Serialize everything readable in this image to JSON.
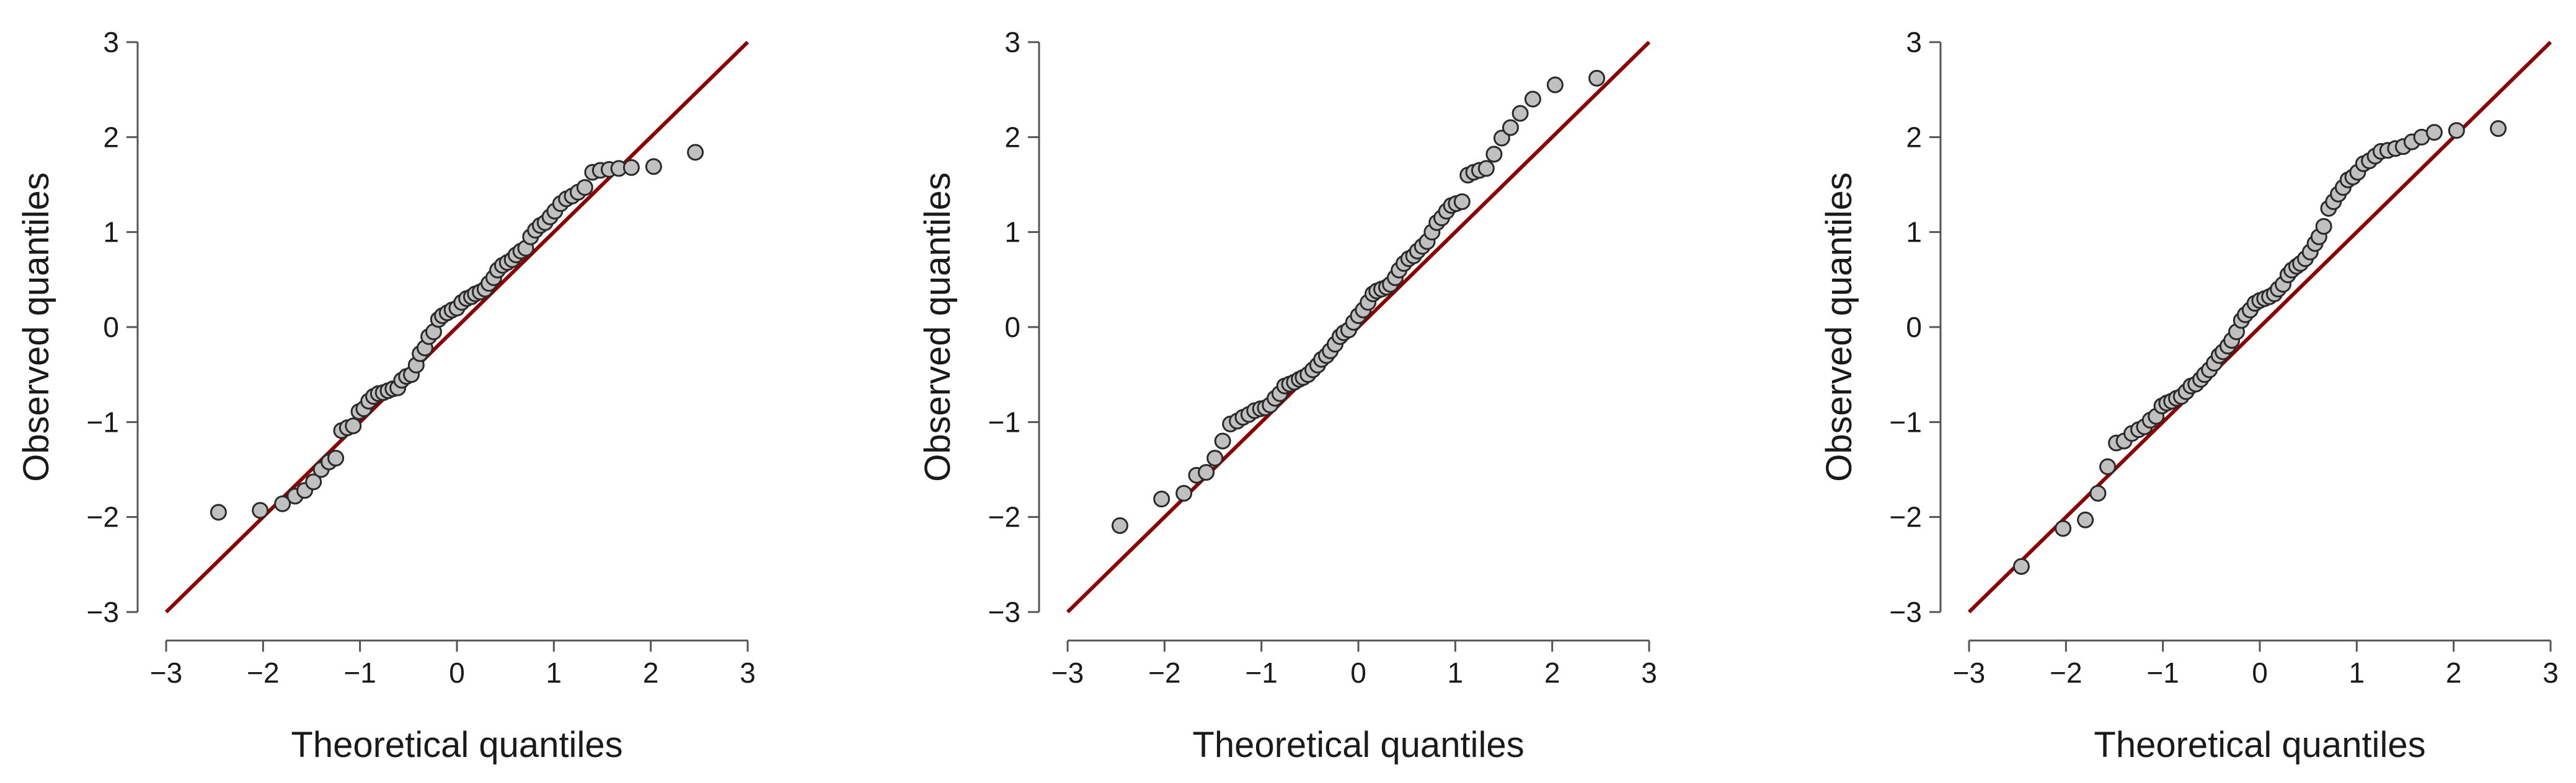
{
  "chart_data": [
    {
      "type": "scatter",
      "xlabel": "Theoretical quantiles",
      "ylabel": "Observed quantiles",
      "xlim": [
        -3,
        3
      ],
      "ylim": [
        -3,
        3
      ],
      "x_ticks": [
        -3,
        -2,
        -1,
        0,
        1,
        2,
        3
      ],
      "y_ticks": [
        -3,
        -2,
        -1,
        0,
        1,
        2,
        3
      ],
      "x_tick_labels": [
        "−3",
        "−2",
        "−1",
        "0",
        "1",
        "2",
        "3"
      ],
      "y_tick_labels": [
        "−3",
        "−2",
        "−1",
        "0",
        "1",
        "2",
        "3"
      ],
      "grid": false,
      "reference_line": {
        "slope": 1,
        "intercept": 0,
        "color": "#8b0000"
      },
      "point_color": "#c0c0c0",
      "x": [
        -2.46,
        -2.03,
        -1.8,
        -1.67,
        -1.57,
        -1.48,
        -1.4,
        -1.32,
        -1.25,
        -1.19,
        -1.13,
        -1.07,
        -1.01,
        -0.96,
        -0.91,
        -0.86,
        -0.81,
        -0.76,
        -0.71,
        -0.66,
        -0.61,
        -0.57,
        -0.52,
        -0.47,
        -0.42,
        -0.38,
        -0.33,
        -0.29,
        -0.24,
        -0.19,
        -0.15,
        -0.1,
        -0.05,
        0,
        0.05,
        0.1,
        0.15,
        0.19,
        0.24,
        0.29,
        0.33,
        0.38,
        0.42,
        0.47,
        0.52,
        0.57,
        0.61,
        0.66,
        0.71,
        0.76,
        0.81,
        0.86,
        0.91,
        0.96,
        1.01,
        1.07,
        1.13,
        1.19,
        1.25,
        1.32,
        1.4,
        1.48,
        1.57,
        1.67,
        1.8,
        2.03,
        2.46
      ],
      "y": [
        -1.95,
        -1.93,
        -1.86,
        -1.78,
        -1.72,
        -1.63,
        -1.5,
        -1.42,
        -1.38,
        -1.09,
        -1.06,
        -1.04,
        -0.89,
        -0.86,
        -0.78,
        -0.73,
        -0.7,
        -0.69,
        -0.67,
        -0.65,
        -0.64,
        -0.56,
        -0.52,
        -0.5,
        -0.4,
        -0.28,
        -0.22,
        -0.1,
        -0.05,
        0.08,
        0.12,
        0.15,
        0.18,
        0.2,
        0.26,
        0.3,
        0.32,
        0.35,
        0.37,
        0.4,
        0.46,
        0.52,
        0.6,
        0.65,
        0.68,
        0.71,
        0.76,
        0.8,
        0.83,
        0.95,
        1.02,
        1.07,
        1.1,
        1.16,
        1.22,
        1.3,
        1.35,
        1.38,
        1.42,
        1.47,
        1.63,
        1.65,
        1.66,
        1.67,
        1.68,
        1.69,
        1.84
      ]
    },
    {
      "type": "scatter",
      "xlabel": "Theoretical quantiles",
      "ylabel": "Observed quantiles",
      "xlim": [
        -3,
        3
      ],
      "ylim": [
        -3,
        3
      ],
      "x_ticks": [
        -3,
        -2,
        -1,
        0,
        1,
        2,
        3
      ],
      "y_ticks": [
        -3,
        -2,
        -1,
        0,
        1,
        2,
        3
      ],
      "x_tick_labels": [
        "−3",
        "−2",
        "−1",
        "0",
        "1",
        "2",
        "3"
      ],
      "y_tick_labels": [
        "−3",
        "−2",
        "−1",
        "0",
        "1",
        "2",
        "3"
      ],
      "grid": false,
      "reference_line": {
        "slope": 1,
        "intercept": 0,
        "color": "#8b0000"
      },
      "point_color": "#c0c0c0",
      "x": [
        -2.46,
        -2.03,
        -1.8,
        -1.67,
        -1.57,
        -1.48,
        -1.4,
        -1.32,
        -1.25,
        -1.19,
        -1.13,
        -1.07,
        -1.01,
        -0.96,
        -0.91,
        -0.86,
        -0.81,
        -0.76,
        -0.71,
        -0.66,
        -0.61,
        -0.57,
        -0.52,
        -0.47,
        -0.42,
        -0.38,
        -0.33,
        -0.29,
        -0.24,
        -0.19,
        -0.15,
        -0.1,
        -0.05,
        0,
        0.05,
        0.1,
        0.15,
        0.19,
        0.24,
        0.29,
        0.33,
        0.38,
        0.42,
        0.47,
        0.52,
        0.57,
        0.61,
        0.66,
        0.71,
        0.76,
        0.81,
        0.86,
        0.91,
        0.96,
        1.01,
        1.07,
        1.13,
        1.19,
        1.25,
        1.32,
        1.4,
        1.48,
        1.57,
        1.67,
        1.8,
        2.03,
        2.46
      ],
      "y": [
        -2.09,
        -1.81,
        -1.75,
        -1.56,
        -1.53,
        -1.38,
        -1.2,
        -1.02,
        -0.99,
        -0.95,
        -0.92,
        -0.88,
        -0.86,
        -0.85,
        -0.82,
        -0.75,
        -0.7,
        -0.62,
        -0.6,
        -0.58,
        -0.55,
        -0.53,
        -0.5,
        -0.45,
        -0.4,
        -0.34,
        -0.3,
        -0.25,
        -0.18,
        -0.1,
        -0.06,
        -0.03,
        0.05,
        0.12,
        0.18,
        0.26,
        0.35,
        0.38,
        0.4,
        0.42,
        0.45,
        0.52,
        0.6,
        0.67,
        0.72,
        0.75,
        0.8,
        0.85,
        0.9,
        1.0,
        1.1,
        1.15,
        1.22,
        1.28,
        1.3,
        1.32,
        1.6,
        1.63,
        1.65,
        1.67,
        1.82,
        1.99,
        2.1,
        2.25,
        2.4,
        2.55,
        2.62
      ]
    },
    {
      "type": "scatter",
      "xlabel": "Theoretical quantiles",
      "ylabel": "Observed quantiles",
      "xlim": [
        -3,
        3
      ],
      "ylim": [
        -3,
        3
      ],
      "x_ticks": [
        -3,
        -2,
        -1,
        0,
        1,
        2,
        3
      ],
      "y_ticks": [
        -3,
        -2,
        -1,
        0,
        1,
        2,
        3
      ],
      "x_tick_labels": [
        "−3",
        "−2",
        "−1",
        "0",
        "1",
        "2",
        "3"
      ],
      "y_tick_labels": [
        "−3",
        "−2",
        "−1",
        "0",
        "1",
        "2",
        "3"
      ],
      "grid": false,
      "reference_line": {
        "slope": 1,
        "intercept": 0,
        "color": "#8b0000"
      },
      "point_color": "#c0c0c0",
      "x": [
        -2.46,
        -2.03,
        -1.8,
        -1.67,
        -1.57,
        -1.48,
        -1.4,
        -1.32,
        -1.25,
        -1.19,
        -1.13,
        -1.07,
        -1.01,
        -0.96,
        -0.91,
        -0.86,
        -0.81,
        -0.76,
        -0.71,
        -0.66,
        -0.61,
        -0.57,
        -0.52,
        -0.47,
        -0.42,
        -0.38,
        -0.33,
        -0.29,
        -0.24,
        -0.19,
        -0.15,
        -0.1,
        -0.05,
        0,
        0.05,
        0.1,
        0.15,
        0.19,
        0.24,
        0.29,
        0.33,
        0.38,
        0.42,
        0.47,
        0.52,
        0.57,
        0.61,
        0.66,
        0.71,
        0.76,
        0.81,
        0.86,
        0.91,
        0.96,
        1.01,
        1.07,
        1.13,
        1.19,
        1.25,
        1.32,
        1.4,
        1.48,
        1.57,
        1.67,
        1.8,
        2.03,
        2.46
      ],
      "y": [
        -2.52,
        -2.12,
        -2.03,
        -1.75,
        -1.47,
        -1.22,
        -1.2,
        -1.12,
        -1.08,
        -1.05,
        -0.98,
        -0.94,
        -0.83,
        -0.8,
        -0.78,
        -0.75,
        -0.73,
        -0.68,
        -0.62,
        -0.6,
        -0.55,
        -0.5,
        -0.45,
        -0.38,
        -0.3,
        -0.26,
        -0.2,
        -0.14,
        -0.05,
        0.07,
        0.13,
        0.18,
        0.25,
        0.28,
        0.3,
        0.32,
        0.35,
        0.4,
        0.45,
        0.55,
        0.6,
        0.64,
        0.67,
        0.72,
        0.79,
        0.88,
        0.95,
        1.06,
        1.25,
        1.32,
        1.4,
        1.47,
        1.55,
        1.58,
        1.63,
        1.72,
        1.75,
        1.8,
        1.85,
        1.86,
        1.88,
        1.9,
        1.95,
        2.0,
        2.05,
        2.07,
        2.09
      ]
    }
  ]
}
